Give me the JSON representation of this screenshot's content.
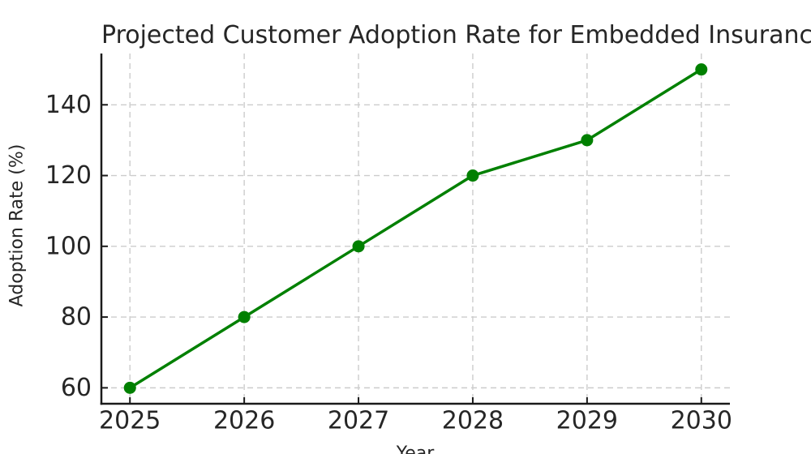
{
  "chart_data": {
    "type": "line",
    "title": "Projected Customer Adoption Rate for Embedded Insurance",
    "xlabel": "Year",
    "ylabel": "Adoption Rate (%)",
    "x": [
      2025,
      2026,
      2027,
      2028,
      2029,
      2030
    ],
    "xtick_labels": [
      "2025",
      "2026",
      "2027",
      "2028",
      "2029",
      "2030"
    ],
    "yticks": [
      60,
      80,
      100,
      120,
      140
    ],
    "ytick_labels": [
      "60",
      "80",
      "100",
      "120",
      "140"
    ],
    "series": [
      {
        "name": "Adoption Rate (%)",
        "values": [
          60,
          80,
          100,
          120,
          130,
          150
        ]
      }
    ],
    "xlim": [
      2024.75,
      2030.25
    ],
    "ylim": [
      55.5,
      154.5
    ],
    "grid": true,
    "legend": "none",
    "colors": {
      "line": "#008000",
      "marker": "#008000",
      "grid": "#cccccc",
      "spine": "#1a1a1a",
      "tick": "#1a1a1a",
      "text": "#262626",
      "background": "#ffffff"
    }
  }
}
